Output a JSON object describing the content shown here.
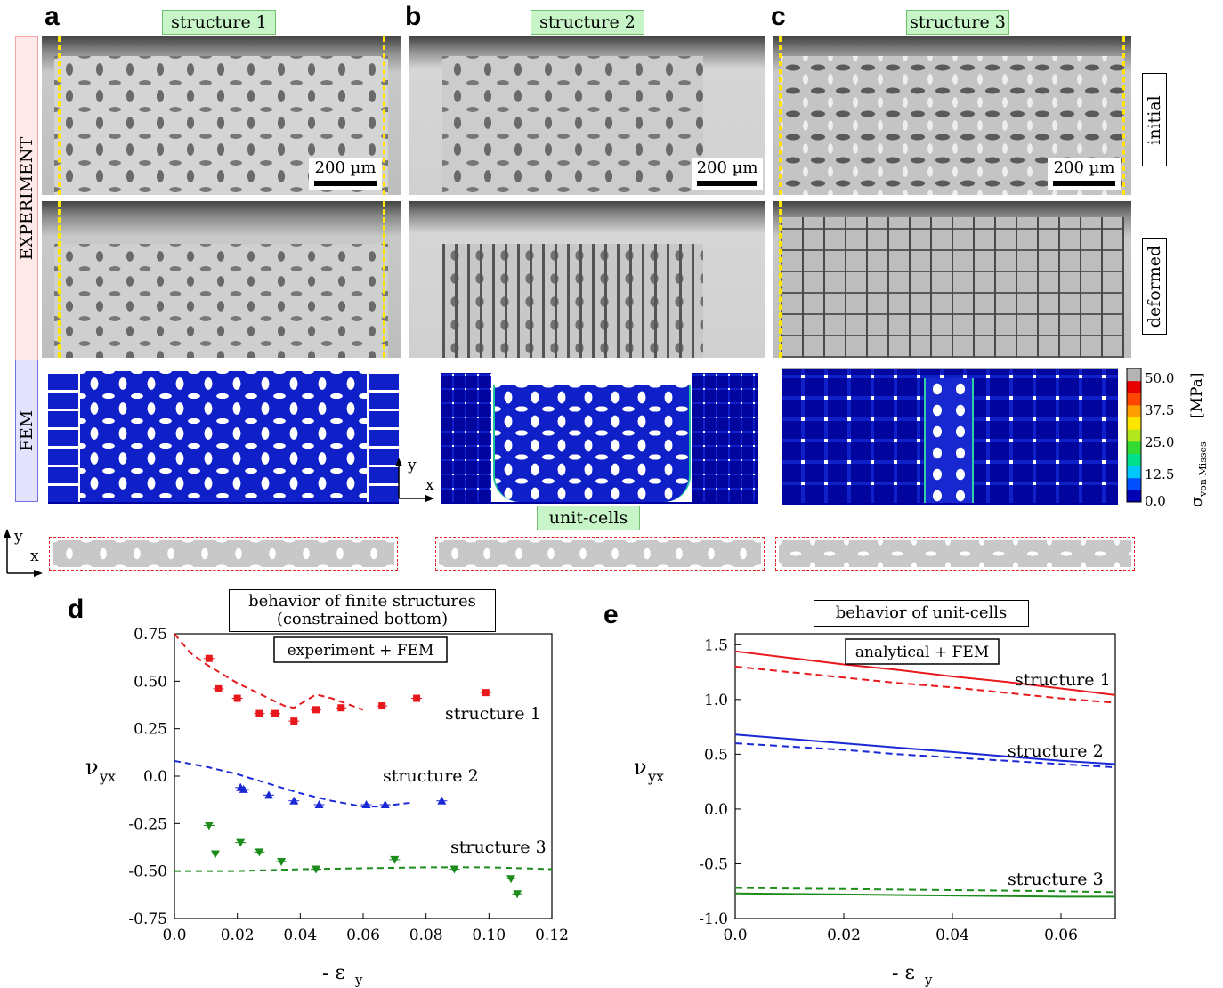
{
  "panels": {
    "a": {
      "letter": "a",
      "label": "structure 1"
    },
    "b": {
      "letter": "b",
      "label": "structure 2"
    },
    "c": {
      "letter": "c",
      "label": "structure 3"
    },
    "d": {
      "letter": "d"
    },
    "e": {
      "letter": "e"
    }
  },
  "row_labels": {
    "experiment": "EXPERIMENT",
    "fem": "FEM"
  },
  "state_labels": {
    "initial": "initial",
    "deformed": "deformed"
  },
  "scale_bar": "200 µm",
  "unit_cells_label": "unit-cells",
  "axes_glyph": {
    "y": "y",
    "x": "x"
  },
  "colorbar": {
    "ticks": [
      "50.0",
      "37.5",
      "25.0",
      "12.5",
      "0.0"
    ],
    "unit": "[MPa]",
    "symbol": "σ",
    "subscript": "von Misses",
    "colors": [
      "#0000b4",
      "#0050ff",
      "#00c8ff",
      "#00e08c",
      "#32dc32",
      "#b4e61e",
      "#ffe600",
      "#ffa000",
      "#ff4600",
      "#e60000",
      "#b4b4b4"
    ]
  },
  "colors": {
    "structure1": "#e8191c",
    "structure2": "#1a28d6",
    "structure3": "#1c8c1c",
    "tag_green": "#c8f5c8",
    "red_box": "#f4a6a6",
    "blue_box": "#6f6fe0"
  },
  "chart_data": [
    {
      "type": "scatter",
      "title": "behavior of finite structures",
      "subtitle": "(constrained bottom)",
      "annotation": "experiment + FEM",
      "xlabel": "- ε",
      "xlabel_sub": "y",
      "ylabel": "ν",
      "ylabel_sub": "yx",
      "xlim": [
        0.0,
        0.12
      ],
      "ylim": [
        -0.75,
        0.75
      ],
      "xticks": [
        "0.0",
        "0.02",
        "0.04",
        "0.06",
        "0.08",
        "0.10",
        "0.12"
      ],
      "yticks": [
        "0.75",
        "0.50",
        "0.25",
        "0.0",
        "-0.25",
        "-0.50",
        "-0.75"
      ],
      "series": [
        {
          "name": "structure 1",
          "color": "#e8191c",
          "marker": "square",
          "points": [
            [
              0.011,
              0.62
            ],
            [
              0.014,
              0.46
            ],
            [
              0.02,
              0.41
            ],
            [
              0.027,
              0.33
            ],
            [
              0.032,
              0.33
            ],
            [
              0.038,
              0.29
            ],
            [
              0.045,
              0.35
            ],
            [
              0.053,
              0.36
            ],
            [
              0.066,
              0.37
            ],
            [
              0.077,
              0.41
            ],
            [
              0.099,
              0.44
            ]
          ],
          "fem": [
            [
              0.0,
              0.75
            ],
            [
              0.005,
              0.65
            ],
            [
              0.01,
              0.59
            ],
            [
              0.015,
              0.54
            ],
            [
              0.02,
              0.49
            ],
            [
              0.025,
              0.45
            ],
            [
              0.03,
              0.41
            ],
            [
              0.035,
              0.37
            ],
            [
              0.038,
              0.36
            ],
            [
              0.042,
              0.4
            ],
            [
              0.045,
              0.43
            ],
            [
              0.05,
              0.41
            ],
            [
              0.055,
              0.38
            ],
            [
              0.06,
              0.35
            ]
          ]
        },
        {
          "name": "structure 2",
          "color": "#1a28d6",
          "marker": "triangle-up",
          "points": [
            [
              0.021,
              -0.06
            ],
            [
              0.022,
              -0.07
            ],
            [
              0.03,
              -0.1
            ],
            [
              0.038,
              -0.13
            ],
            [
              0.046,
              -0.15
            ],
            [
              0.061,
              -0.15
            ],
            [
              0.067,
              -0.15
            ],
            [
              0.085,
              -0.13
            ]
          ],
          "fem": [
            [
              0.0,
              0.08
            ],
            [
              0.01,
              0.05
            ],
            [
              0.02,
              0.01
            ],
            [
              0.03,
              -0.04
            ],
            [
              0.04,
              -0.09
            ],
            [
              0.05,
              -0.13
            ],
            [
              0.06,
              -0.16
            ],
            [
              0.065,
              -0.16
            ],
            [
              0.07,
              -0.15
            ],
            [
              0.075,
              -0.14
            ]
          ]
        },
        {
          "name": "structure 3",
          "color": "#1c8c1c",
          "marker": "triangle-down",
          "points": [
            [
              0.011,
              -0.26
            ],
            [
              0.013,
              -0.41
            ],
            [
              0.021,
              -0.35
            ],
            [
              0.027,
              -0.4
            ],
            [
              0.034,
              -0.45
            ],
            [
              0.045,
              -0.49
            ],
            [
              0.07,
              -0.44
            ],
            [
              0.089,
              -0.49
            ],
            [
              0.107,
              -0.54
            ],
            [
              0.109,
              -0.62
            ]
          ],
          "fem": [
            [
              0.0,
              -0.5
            ],
            [
              0.02,
              -0.5
            ],
            [
              0.04,
              -0.49
            ],
            [
              0.06,
              -0.485
            ],
            [
              0.08,
              -0.48
            ],
            [
              0.1,
              -0.48
            ],
            [
              0.12,
              -0.49
            ]
          ]
        }
      ]
    },
    {
      "type": "line",
      "title": "behavior of unit-cells",
      "annotation": "analytical + FEM",
      "xlabel": "- ε",
      "xlabel_sub": "y",
      "ylabel": "ν",
      "ylabel_sub": "yx",
      "xlim": [
        0.0,
        0.07
      ],
      "ylim": [
        -1.0,
        1.6
      ],
      "xticks": [
        "0.0",
        "0.02",
        "0.04",
        "0.06"
      ],
      "yticks": [
        "1.5",
        "1.0",
        "0.5",
        "0.0",
        "-0.5",
        "-1.0"
      ],
      "series": [
        {
          "name": "structure 1",
          "color": "#e8191c",
          "analytical": [
            [
              0.0,
              1.44
            ],
            [
              0.01,
              1.38
            ],
            [
              0.02,
              1.32
            ],
            [
              0.03,
              1.27
            ],
            [
              0.04,
              1.21
            ],
            [
              0.05,
              1.16
            ],
            [
              0.06,
              1.1
            ],
            [
              0.07,
              1.04
            ]
          ],
          "fem": [
            [
              0.0,
              1.3
            ],
            [
              0.01,
              1.25
            ],
            [
              0.02,
              1.2
            ],
            [
              0.03,
              1.15
            ],
            [
              0.04,
              1.11
            ],
            [
              0.05,
              1.06
            ],
            [
              0.06,
              1.01
            ],
            [
              0.07,
              0.97
            ]
          ]
        },
        {
          "name": "structure 2",
          "color": "#1a28d6",
          "analytical": [
            [
              0.0,
              0.68
            ],
            [
              0.01,
              0.64
            ],
            [
              0.02,
              0.6
            ],
            [
              0.03,
              0.56
            ],
            [
              0.04,
              0.52
            ],
            [
              0.05,
              0.48
            ],
            [
              0.06,
              0.44
            ],
            [
              0.07,
              0.41
            ]
          ],
          "fem": [
            [
              0.0,
              0.6
            ],
            [
              0.01,
              0.57
            ],
            [
              0.02,
              0.54
            ],
            [
              0.03,
              0.5
            ],
            [
              0.04,
              0.47
            ],
            [
              0.05,
              0.44
            ],
            [
              0.06,
              0.41
            ],
            [
              0.07,
              0.38
            ]
          ]
        },
        {
          "name": "structure 3",
          "color": "#1c8c1c",
          "analytical": [
            [
              0.0,
              -0.77
            ],
            [
              0.02,
              -0.78
            ],
            [
              0.04,
              -0.79
            ],
            [
              0.06,
              -0.8
            ],
            [
              0.07,
              -0.8
            ]
          ],
          "fem": [
            [
              0.0,
              -0.72
            ],
            [
              0.02,
              -0.73
            ],
            [
              0.04,
              -0.74
            ],
            [
              0.06,
              -0.75
            ],
            [
              0.07,
              -0.76
            ]
          ]
        }
      ]
    }
  ]
}
